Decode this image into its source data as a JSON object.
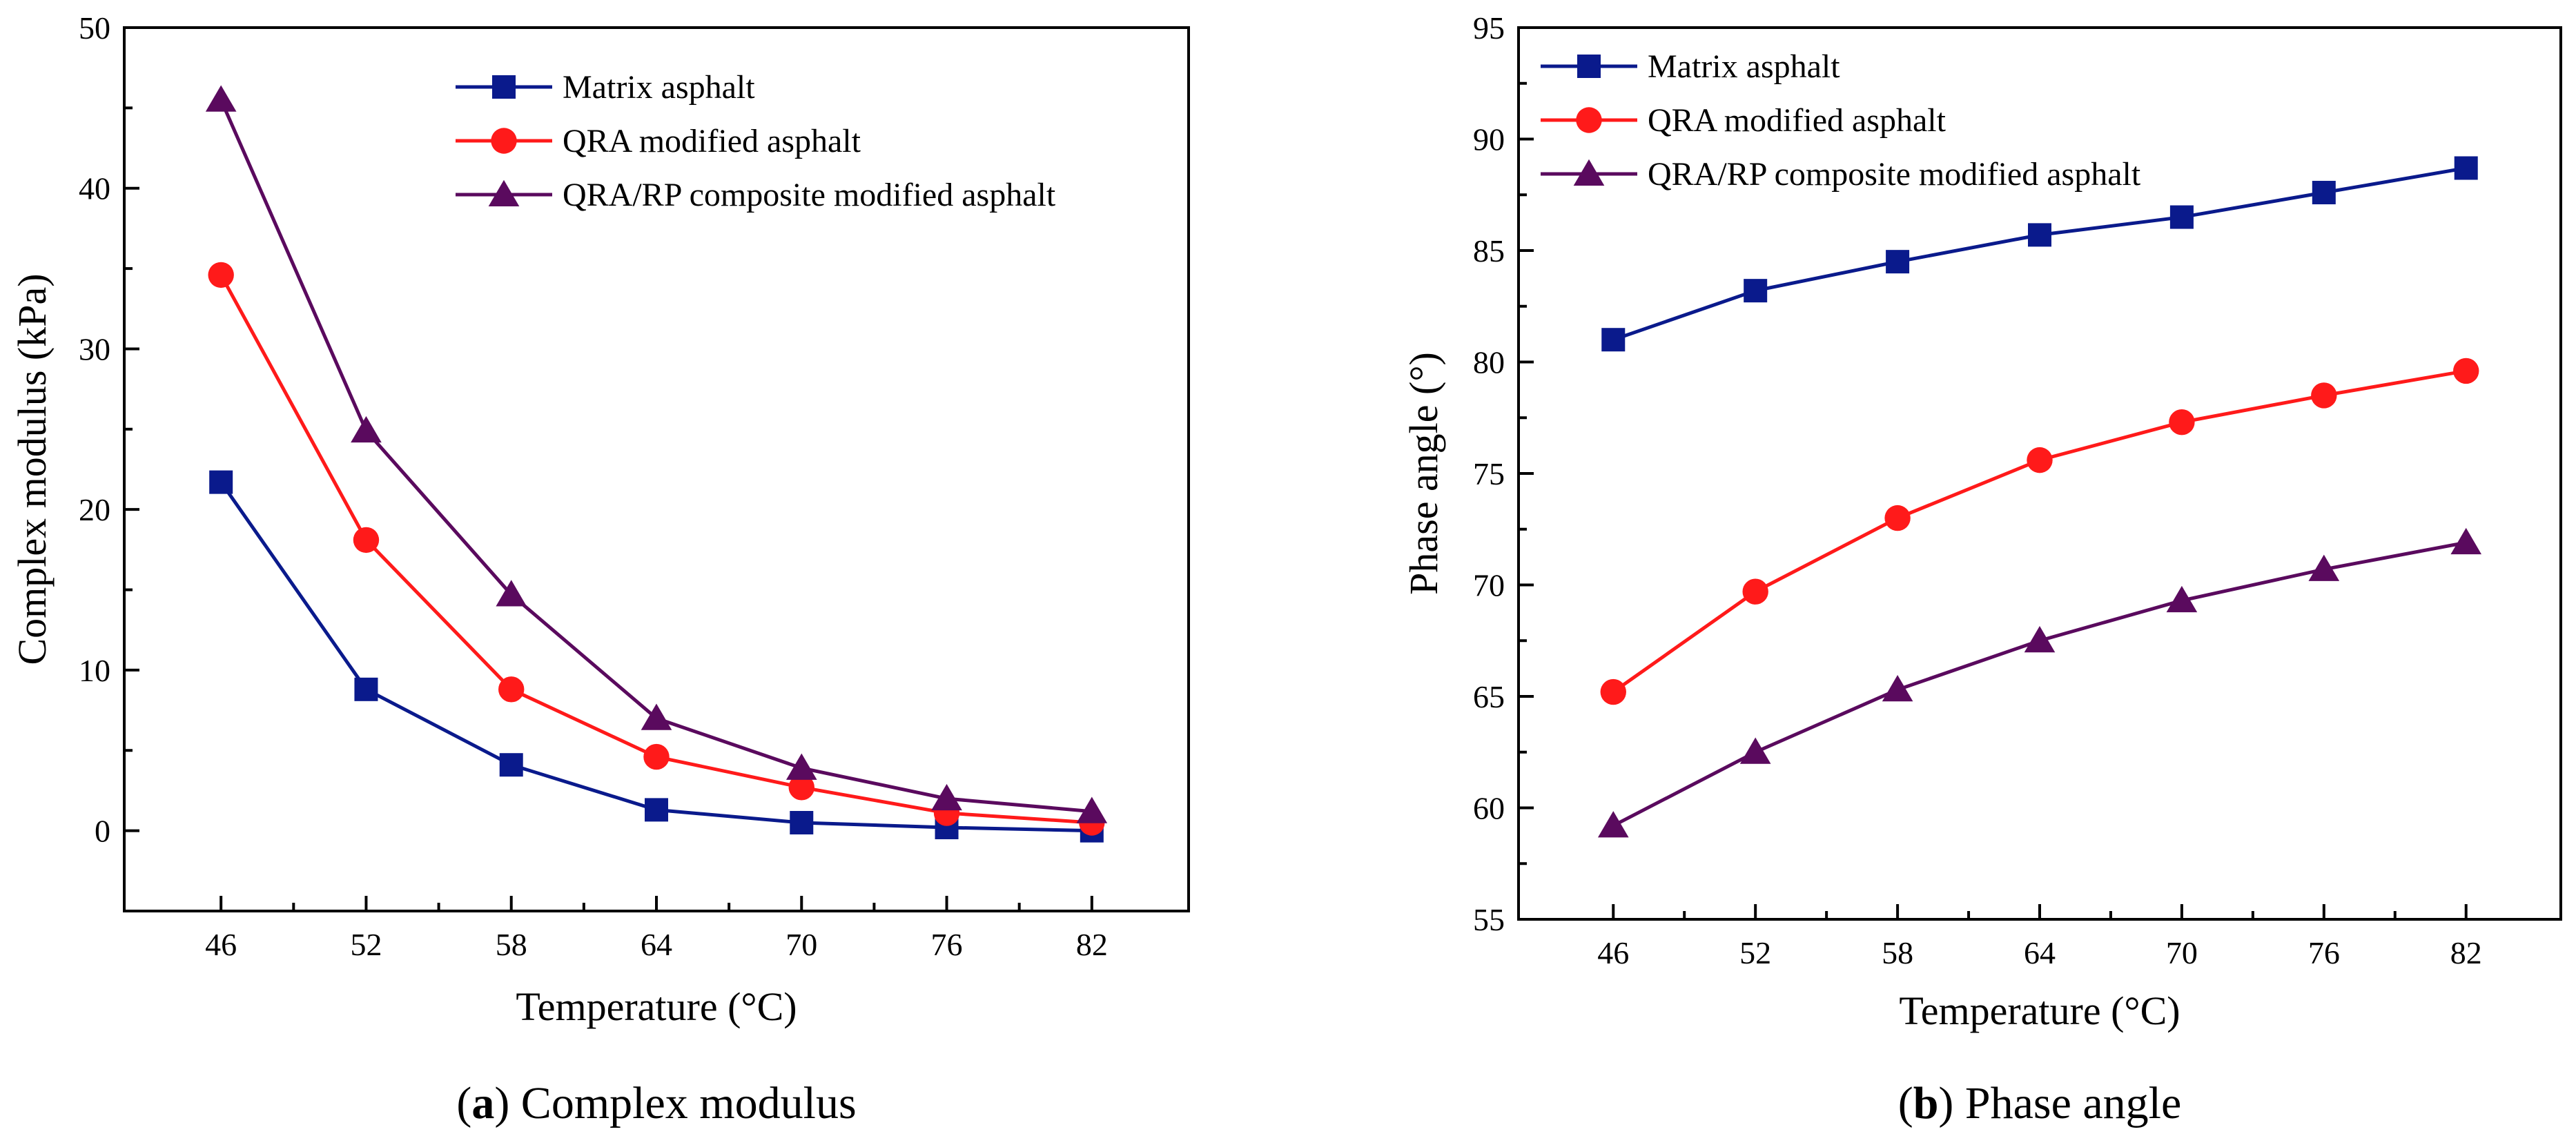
{
  "chart_data": [
    {
      "type": "line",
      "caption_letter": "a",
      "caption_text": "Complex modulus",
      "xlabel": "Temperature (°C)",
      "ylabel": "Complex modulus (kPa)",
      "x": [
        46,
        52,
        58,
        64,
        70,
        76,
        82
      ],
      "xlim": [
        42,
        86
      ],
      "ylim": [
        -5,
        50
      ],
      "yticks": [
        0,
        10,
        20,
        30,
        40,
        50
      ],
      "legend_position": "top-right",
      "series": [
        {
          "name": "Matrix asphalt",
          "marker": "square",
          "color": "#0a1a8c",
          "values": [
            21.7,
            8.8,
            4.1,
            1.3,
            0.5,
            0.2,
            0.0
          ]
        },
        {
          "name": "QRA modified asphalt",
          "marker": "circle",
          "color": "#ff1a1a",
          "values": [
            34.6,
            18.1,
            8.8,
            4.6,
            2.7,
            1.1,
            0.5
          ]
        },
        {
          "name": "QRA/RP composite modified asphalt",
          "marker": "triangle",
          "color": "#5a0a5e",
          "values": [
            45.5,
            24.9,
            14.7,
            7.0,
            3.9,
            2.0,
            1.2
          ]
        }
      ]
    },
    {
      "type": "line",
      "caption_letter": "b",
      "caption_text": "Phase angle",
      "xlabel": "Temperature (°C)",
      "ylabel": "Phase angle (°)",
      "x": [
        46,
        52,
        58,
        64,
        70,
        76,
        82
      ],
      "xlim": [
        42,
        86
      ],
      "ylim": [
        55,
        95
      ],
      "yticks": [
        55,
        60,
        65,
        70,
        75,
        80,
        85,
        90,
        95
      ],
      "legend_position": "top-left",
      "series": [
        {
          "name": "Matrix asphalt",
          "marker": "square",
          "color": "#0a1a8c",
          "values": [
            81.0,
            83.2,
            84.5,
            85.7,
            86.5,
            87.6,
            88.7
          ]
        },
        {
          "name": "QRA modified asphalt",
          "marker": "circle",
          "color": "#ff1a1a",
          "values": [
            65.2,
            69.7,
            73.0,
            75.6,
            77.3,
            78.5,
            79.6
          ]
        },
        {
          "name": "QRA/RP composite modified asphalt",
          "marker": "triangle",
          "color": "#5a0a5e",
          "values": [
            59.2,
            62.5,
            65.3,
            67.5,
            69.3,
            70.7,
            71.9
          ]
        }
      ]
    }
  ]
}
